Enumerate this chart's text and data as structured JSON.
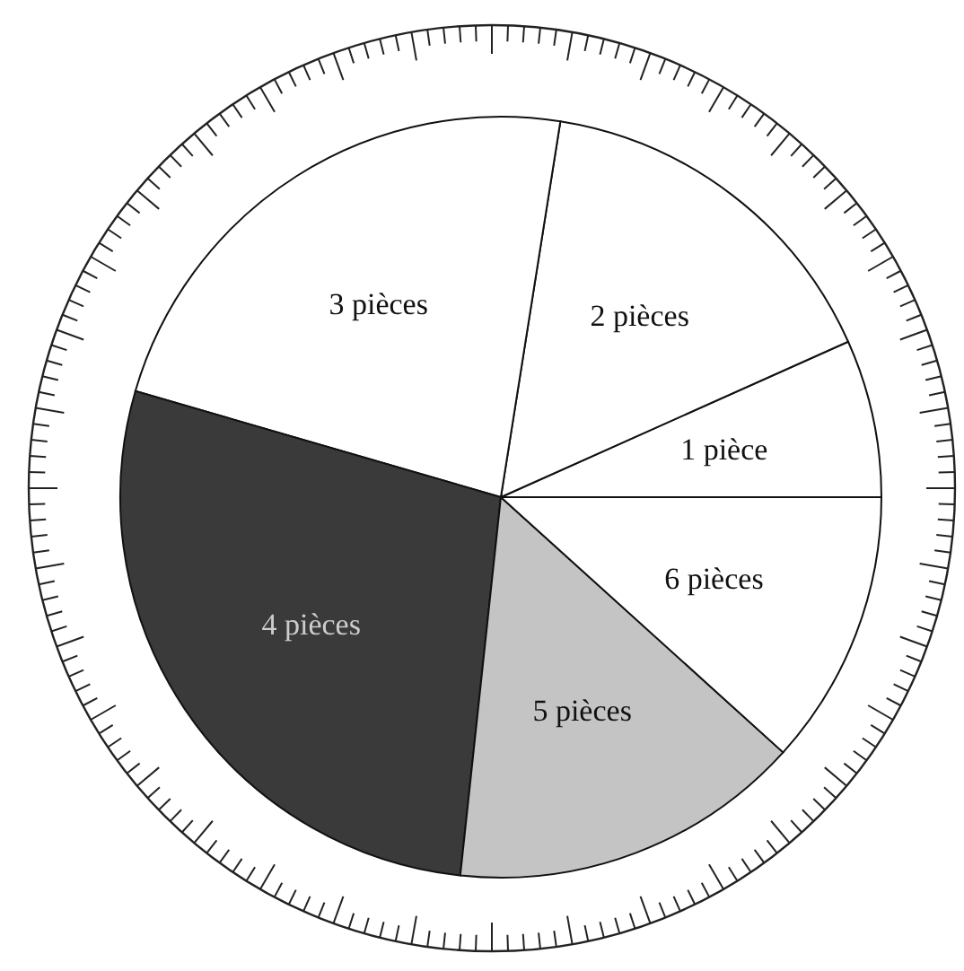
{
  "chart_data": {
    "type": "pie",
    "categories": [
      "1 pièce",
      "2 pièces",
      "3 pièces",
      "4 pièces",
      "5 pièces",
      "6 pièces"
    ],
    "values": [
      6.7,
      15.8,
      23.0,
      27.8,
      15.0,
      11.7
    ],
    "colors": [
      "#ffffff",
      "#ffffff",
      "#ffffff",
      "#3a3a3a",
      "#c4c4c4",
      "#ffffff"
    ]
  }
}
